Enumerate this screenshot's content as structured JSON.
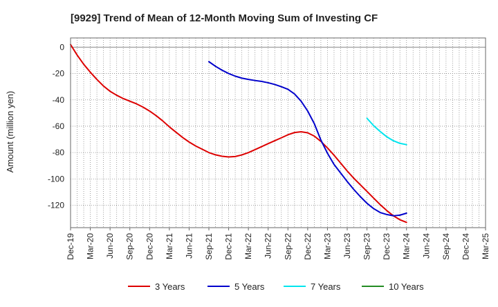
{
  "chart_data": {
    "type": "line",
    "title": "[9929]  Trend of Mean of 12-Month Moving Sum of Investing CF",
    "xlabel": "",
    "ylabel": "Amount (million yen)",
    "ylim": [
      -137,
      7
    ],
    "xlim": [
      0,
      63
    ],
    "yticks": [
      0,
      -20,
      -40,
      -60,
      -80,
      -100,
      -120
    ],
    "yticklabels": [
      "0",
      "-20",
      "-40",
      "-60",
      "-80",
      "-100",
      "-120"
    ],
    "xtick_labels": [
      "Dec-19",
      "Mar-20",
      "Jun-20",
      "Sep-20",
      "Dec-20",
      "Mar-21",
      "Jun-21",
      "Sep-21",
      "Dec-21",
      "Mar-22",
      "Jun-22",
      "Sep-22",
      "Dec-22",
      "Mar-23",
      "Jun-23",
      "Sep-23",
      "Dec-23",
      "Mar-24",
      "Jun-24",
      "Sep-24",
      "Dec-24",
      "Mar-25"
    ],
    "xtick_positions": [
      0,
      3,
      6,
      9,
      12,
      15,
      18,
      21,
      24,
      27,
      30,
      33,
      36,
      39,
      42,
      45,
      48,
      51,
      54,
      57,
      60,
      63
    ],
    "grid": true,
    "legend_position": "bottom",
    "series": [
      {
        "name": "3 Years",
        "color": "#dd0000",
        "x": [
          0,
          1,
          2,
          3,
          4,
          5,
          6,
          7,
          8,
          9,
          10,
          11,
          12,
          13,
          14,
          15,
          16,
          17,
          18,
          19,
          20,
          21,
          22,
          23,
          24,
          25,
          26,
          27,
          28,
          29,
          30,
          31,
          32,
          33,
          34,
          35,
          36,
          37,
          38,
          39,
          40,
          41,
          42,
          43,
          44,
          45,
          46,
          47,
          48,
          49,
          50,
          51
        ],
        "values": [
          2,
          -6,
          -13,
          -19,
          -24.5,
          -29.5,
          -33.5,
          -36.5,
          -39,
          -41,
          -43,
          -45.5,
          -48.5,
          -52,
          -56,
          -60.5,
          -64.5,
          -68.5,
          -72,
          -75,
          -77.5,
          -80,
          -81.7,
          -82.8,
          -83.3,
          -83,
          -81.8,
          -80,
          -77.8,
          -75.5,
          -73.2,
          -71,
          -68.8,
          -66.5,
          -64.8,
          -64.2,
          -65,
          -67.5,
          -71.5,
          -76.5,
          -82,
          -88,
          -94,
          -99.5,
          -104.5,
          -109.5,
          -114.5,
          -119.5,
          -124,
          -128,
          -131,
          -133
        ]
      },
      {
        "name": "5 Years",
        "color": "#0000cc",
        "x": [
          21,
          22,
          23,
          24,
          25,
          26,
          27,
          28,
          29,
          30,
          31,
          32,
          33,
          34,
          35,
          36,
          37,
          38,
          39,
          40,
          41,
          42,
          43,
          44,
          45,
          46,
          47,
          48,
          49,
          50,
          51
        ],
        "values": [
          -11,
          -14.5,
          -17.5,
          -20,
          -22,
          -23.5,
          -24.5,
          -25.3,
          -26,
          -27,
          -28.3,
          -30,
          -32,
          -35.5,
          -41,
          -48.5,
          -58,
          -70.5,
          -80.5,
          -89,
          -95.5,
          -102,
          -108,
          -113.5,
          -118.5,
          -122.5,
          -125.5,
          -127,
          -128,
          -127.5,
          -126
        ]
      },
      {
        "name": "7 Years",
        "color": "#00e5ee",
        "x": [
          45,
          46,
          47,
          48,
          49,
          50,
          51
        ],
        "values": [
          -54,
          -59.5,
          -64,
          -68,
          -71,
          -73,
          -74
        ]
      },
      {
        "name": "10 Years",
        "color": "#228b22",
        "x": [],
        "values": []
      }
    ]
  }
}
